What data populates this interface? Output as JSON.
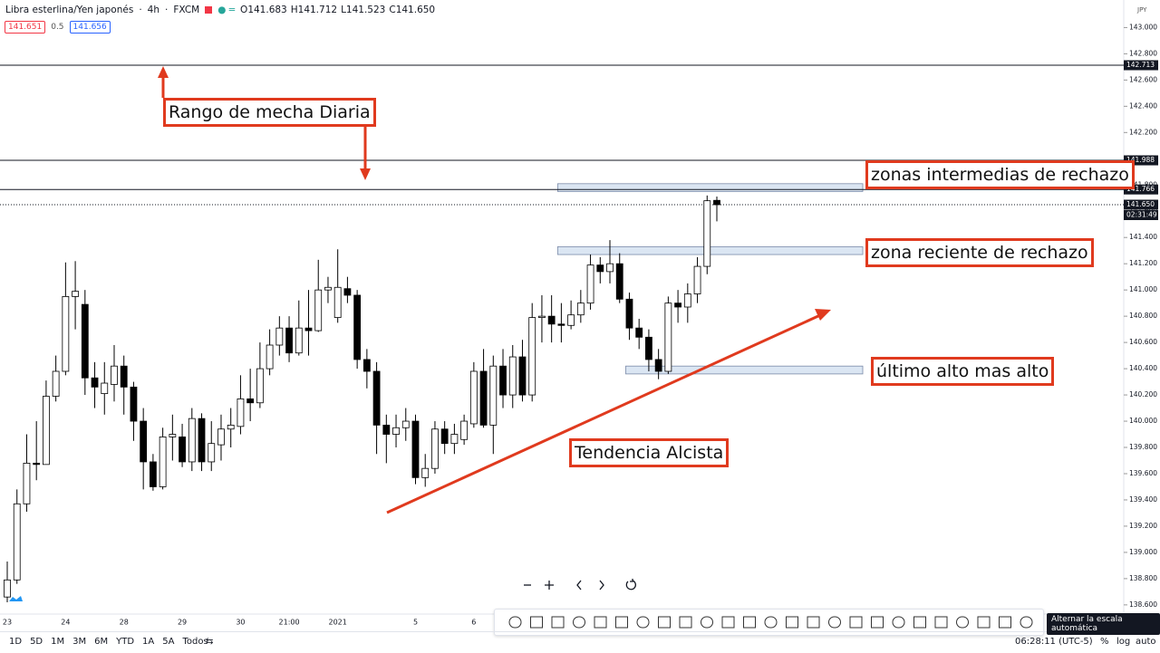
{
  "header": {
    "symbol": "Libra esterlina/Yen japonés",
    "interval": "4h",
    "source": "FXCM",
    "ohlc": [
      {
        "key": "O",
        "value": "141.683"
      },
      {
        "key": "H",
        "value": "141.712"
      },
      {
        "key": "L",
        "value": "141.523"
      },
      {
        "key": "C",
        "value": "141.650"
      }
    ],
    "sell": "141.651",
    "spread": "0.5",
    "buy": "141.656",
    "currency": "JPY"
  },
  "annotations": [
    "Rango de mecha Diaria",
    "zonas intermedias de rechazo",
    "zona reciente de rechazo",
    "último alto mas alto",
    "Tendencia Alcista"
  ],
  "bottom_bar": {
    "ranges": [
      "1D",
      "5D",
      "1M",
      "3M",
      "6M",
      "YTD",
      "1A",
      "5A",
      "Todos"
    ],
    "clock": "06:28:11 (UTC-5)",
    "percent": "%",
    "log": "log",
    "auto": "auto",
    "tooltip": "Alternar la escala automática"
  },
  "chart_data": {
    "type": "candlestick",
    "categories": [
      "23",
      null,
      null,
      null,
      null,
      null,
      "24",
      null,
      null,
      null,
      null,
      null,
      "28",
      null,
      null,
      null,
      null,
      null,
      "29",
      null,
      null,
      null,
      null,
      null,
      "30",
      null,
      null,
      null,
      null,
      "21:00",
      null,
      null,
      null,
      null,
      "2021",
      null,
      null,
      null,
      null,
      null,
      null,
      null,
      "5",
      null,
      null,
      null,
      null,
      null,
      "6",
      null,
      null,
      null,
      null,
      null,
      null,
      null,
      null,
      null,
      null,
      null,
      null,
      null,
      null,
      null,
      null,
      null,
      null,
      null,
      null,
      null,
      null,
      null,
      null,
      null
    ],
    "open": [
      138.66,
      138.79,
      139.37,
      139.68,
      139.67,
      140.19,
      140.38,
      140.95,
      140.89,
      140.33,
      140.21,
      140.28,
      140.42,
      140.26,
      140.0,
      139.69,
      139.5,
      139.88,
      139.88,
      139.69,
      140.02,
      139.69,
      139.82,
      139.94,
      139.96,
      140.17,
      140.14,
      140.4,
      140.58,
      140.71,
      140.52,
      140.71,
      140.69,
      141.0,
      140.79,
      141.01,
      140.96,
      140.47,
      140.38,
      139.97,
      139.9,
      139.95,
      140.0,
      139.57,
      139.64,
      139.94,
      139.83,
      139.86,
      139.98,
      140.38,
      139.97,
      140.42,
      140.2,
      140.49,
      140.2,
      140.79,
      140.8,
      140.74,
      140.73,
      140.81,
      140.9,
      141.19,
      141.14,
      141.2,
      140.93,
      140.71,
      140.64,
      140.47,
      140.38,
      140.9,
      140.87,
      140.97,
      141.18,
      141.683
    ],
    "high": [
      138.93,
      139.48,
      139.9,
      140.0,
      140.31,
      140.5,
      141.21,
      141.22,
      141.0,
      140.45,
      140.45,
      140.58,
      140.5,
      140.3,
      140.1,
      139.75,
      139.95,
      140.05,
      139.98,
      140.1,
      140.06,
      140.0,
      140.05,
      140.1,
      140.35,
      140.4,
      140.6,
      140.7,
      140.8,
      140.8,
      140.92,
      141.0,
      141.23,
      141.1,
      141.31,
      141.1,
      141.0,
      140.55,
      140.45,
      140.05,
      140.05,
      140.1,
      140.05,
      139.75,
      140.0,
      140.0,
      139.98,
      140.05,
      140.45,
      140.55,
      140.5,
      140.55,
      140.58,
      140.62,
      140.9,
      140.96,
      140.96,
      140.9,
      140.92,
      141.0,
      141.27,
      141.25,
      141.38,
      141.28,
      140.98,
      140.78,
      140.7,
      140.55,
      140.95,
      141.0,
      141.05,
      141.25,
      141.72,
      141.712
    ],
    "low": [
      138.62,
      138.76,
      139.31,
      139.55,
      139.67,
      140.15,
      140.35,
      140.7,
      140.2,
      140.1,
      140.05,
      140.15,
      140.05,
      139.85,
      139.48,
      139.47,
      139.48,
      139.7,
      139.65,
      139.62,
      139.62,
      139.62,
      139.7,
      139.8,
      139.9,
      140.0,
      140.1,
      140.35,
      140.5,
      140.45,
      140.5,
      140.5,
      140.68,
      140.9,
      140.75,
      140.9,
      140.4,
      140.25,
      139.75,
      139.68,
      139.8,
      139.85,
      139.52,
      139.5,
      139.6,
      139.75,
      139.75,
      139.82,
      139.95,
      139.95,
      139.75,
      140.1,
      140.1,
      140.15,
      140.15,
      140.6,
      140.6,
      140.6,
      140.7,
      140.75,
      140.85,
      141.05,
      141.05,
      140.9,
      140.62,
      140.55,
      140.38,
      140.32,
      140.36,
      140.75,
      140.75,
      140.9,
      141.12,
      141.523
    ],
    "close": [
      138.79,
      139.37,
      139.68,
      139.67,
      140.19,
      140.38,
      140.95,
      140.99,
      140.33,
      140.26,
      140.29,
      140.42,
      140.26,
      140.0,
      139.69,
      139.5,
      139.88,
      139.9,
      139.69,
      140.02,
      139.69,
      139.83,
      139.94,
      139.97,
      140.17,
      140.14,
      140.4,
      140.58,
      140.71,
      140.52,
      140.71,
      140.69,
      141.0,
      141.02,
      141.02,
      140.96,
      140.47,
      140.38,
      139.97,
      139.9,
      139.95,
      140.0,
      139.57,
      139.64,
      139.94,
      139.83,
      139.9,
      140.0,
      140.38,
      139.97,
      140.42,
      140.2,
      140.49,
      140.2,
      140.79,
      140.8,
      140.74,
      140.73,
      140.81,
      140.9,
      141.19,
      141.14,
      141.2,
      140.93,
      140.71,
      140.64,
      140.47,
      140.38,
      140.9,
      140.87,
      140.97,
      141.18,
      141.68,
      141.65
    ],
    "up_color": "#ffffff",
    "down_color": "#000000",
    "ylim": [
      138.53,
      143.21
    ],
    "yticks": [
      {
        "value": 138.6,
        "label": "138.600"
      },
      {
        "value": 138.8,
        "label": "138.800"
      },
      {
        "value": 139.0,
        "label": "139.000"
      },
      {
        "value": 139.2,
        "label": "139.200"
      },
      {
        "value": 139.4,
        "label": "139.400"
      },
      {
        "value": 139.6,
        "label": "139.600"
      },
      {
        "value": 139.8,
        "label": "139.800"
      },
      {
        "value": 140.0,
        "label": "140.000"
      },
      {
        "value": 140.2,
        "label": "140.200"
      },
      {
        "value": 140.4,
        "label": "140.400"
      },
      {
        "value": 140.6,
        "label": "140.600"
      },
      {
        "value": 140.8,
        "label": "140.800"
      },
      {
        "value": 141.0,
        "label": "141.000"
      },
      {
        "value": 141.2,
        "label": "141.200"
      },
      {
        "value": 141.4,
        "label": "141.400"
      },
      {
        "value": 141.6,
        "label": "141.600"
      },
      {
        "value": 141.8,
        "label": "141.800"
      },
      {
        "value": 142.0,
        "label": "142.000"
      },
      {
        "value": 142.2,
        "label": "142.200"
      },
      {
        "value": 142.4,
        "label": "142.400"
      },
      {
        "value": 142.6,
        "label": "142.600"
      },
      {
        "value": 142.8,
        "label": "142.800"
      },
      {
        "value": 143.0,
        "label": "143.000"
      }
    ],
    "levels": [
      {
        "value": 142.713,
        "label": "142.713",
        "style": "solid"
      },
      {
        "value": 141.988,
        "label": "141.988",
        "style": "solid"
      },
      {
        "value": 141.766,
        "label": "141.766",
        "style": "solid"
      },
      {
        "value": 141.65,
        "label": "141.650",
        "style": "dotted"
      }
    ],
    "countdown": "02:31:49",
    "zones": [
      {
        "low": 141.75,
        "high": 141.81,
        "start": 57
      },
      {
        "low": 141.27,
        "high": 141.33,
        "start": 57
      },
      {
        "low": 140.36,
        "high": 140.42,
        "start": 64
      }
    ],
    "zone_color": "#dbe6f3"
  }
}
